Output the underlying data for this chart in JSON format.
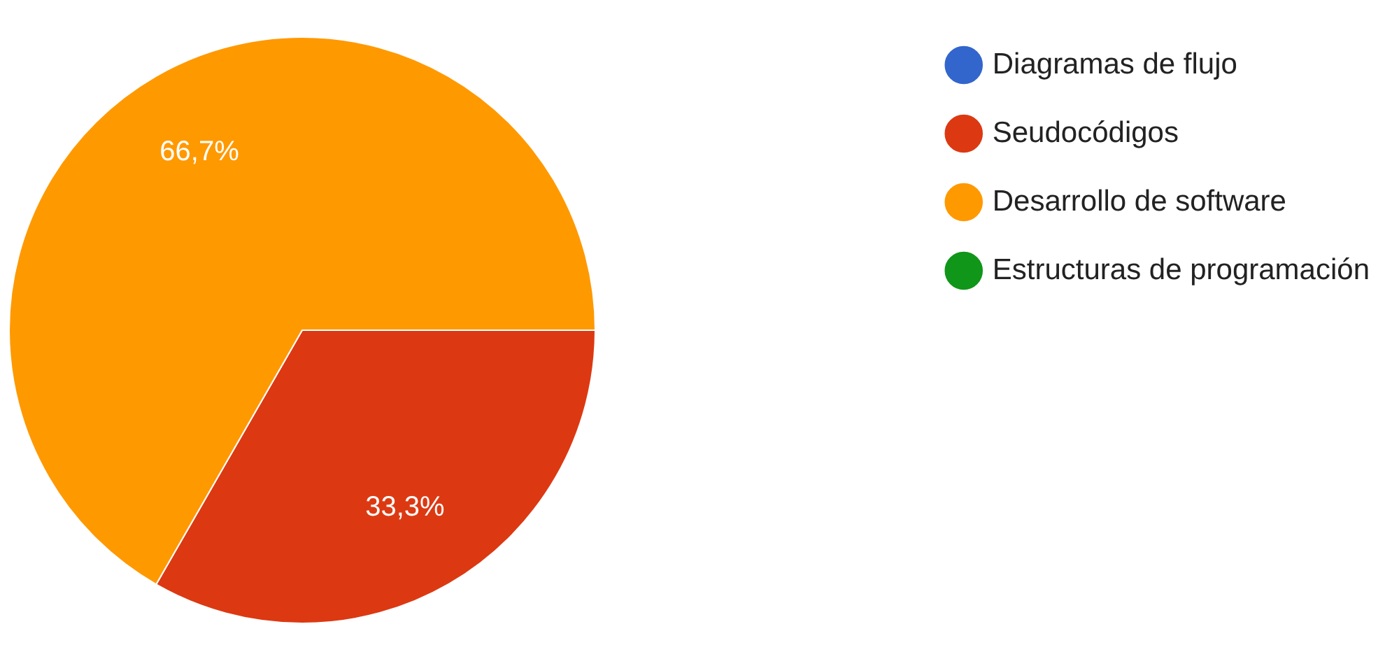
{
  "chart_data": {
    "type": "pie",
    "categories": [
      "Diagramas de flujo",
      "Seudocódigos",
      "Desarrollo de software",
      "Estructuras de programación"
    ],
    "values": [
      0,
      33.3,
      66.7,
      0
    ],
    "colors": [
      "#3366cc",
      "#dc3912",
      "#ff9900",
      "#109618"
    ],
    "value_labels": [
      null,
      "33,3%",
      "66,7%",
      null
    ],
    "legend": "top right"
  }
}
